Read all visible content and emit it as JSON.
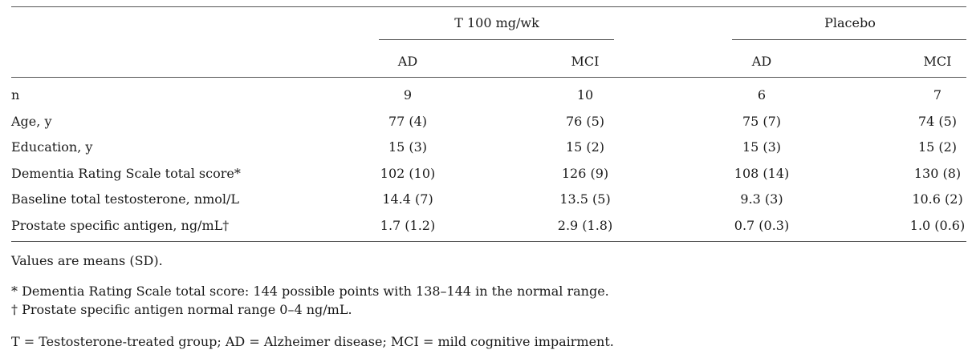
{
  "table": {
    "group_headers": [
      "T 100 mg/wk",
      "Placebo"
    ],
    "columns": [
      "AD",
      "MCI",
      "AD",
      "MCI"
    ],
    "rows": [
      {
        "label": "n",
        "values": [
          "9",
          "10",
          "6",
          "7"
        ]
      },
      {
        "label": "Age, y",
        "values": [
          "77 (4)",
          "76 (5)",
          "75 (7)",
          "74 (5)"
        ]
      },
      {
        "label": "Education, y",
        "values": [
          "15 (3)",
          "15 (2)",
          "15 (3)",
          "15 (2)"
        ]
      },
      {
        "label": "Dementia Rating Scale total score*",
        "values": [
          "102 (10)",
          "126 (9)",
          "108 (14)",
          "130 (8)"
        ]
      },
      {
        "label": "Baseline total testosterone, nmol/L",
        "values": [
          "14.4 (7)",
          "13.5 (5)",
          "9.3 (3)",
          "10.6 (2)"
        ]
      },
      {
        "label": "Prostate specific antigen, ng/mL†",
        "values": [
          "1.7 (1.2)",
          "2.9 (1.8)",
          "0.7 (0.3)",
          "1.0 (0.6)"
        ]
      }
    ]
  },
  "footnotes": {
    "values_note": "Values are means (SD).",
    "star_note": "* Dementia Rating Scale total score: 144 possible points with 138–144 in the normal range.",
    "dagger_note": "† Prostate specific antigen normal range 0–4 ng/mL.",
    "abbrev_note": "T = Testosterone-treated group; AD = Alzheimer disease; MCI = mild cognitive impairment."
  }
}
